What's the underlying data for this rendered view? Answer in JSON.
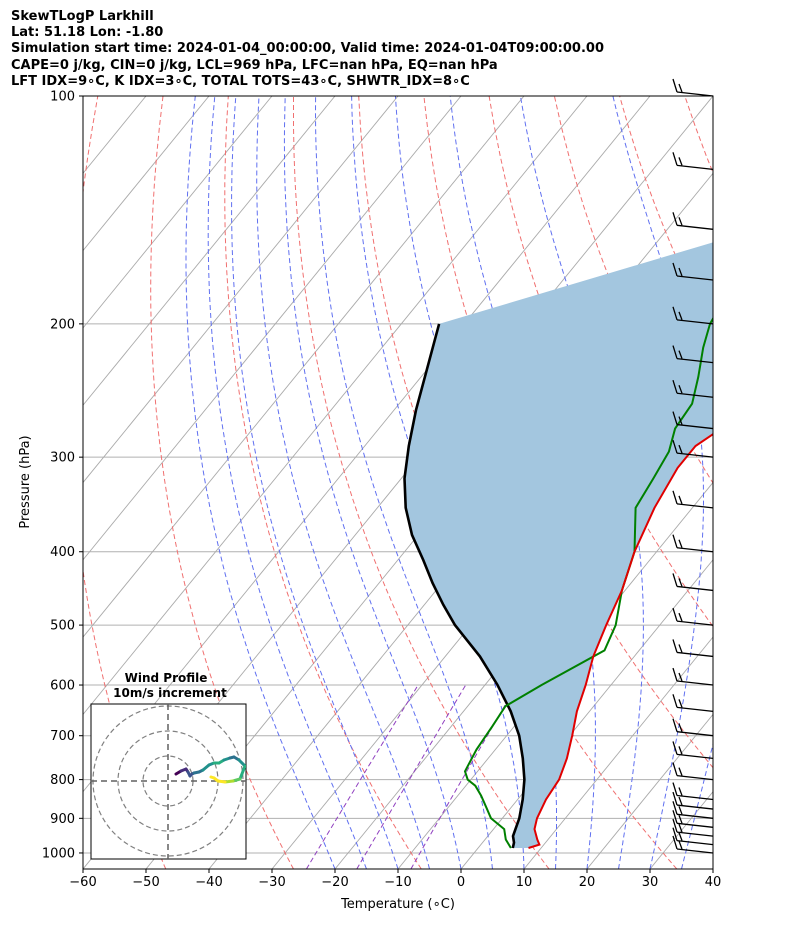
{
  "header": {
    "line1": "SkewTLogP Larkhill",
    "line2": "Lat: 51.18   Lon: -1.80",
    "line3": "Simulation start time: 2024-01-04_00:00:00, Valid time: 2024-01-04T09:00:00.00",
    "line4": "CAPE=0 j/kg, CIN=0 j/kg, LCL=969 hPa, LFC=nan hPa, EQ=nan hPa",
    "line5": "LFT IDX=9∘C, K IDX=3∘C, TOTAL TOTS=43∘C, SHWTR_IDX=8∘C"
  },
  "chart_data": {
    "type": "skew-t log-p",
    "xlabel": "Temperature (∘C)",
    "ylabel": "Pressure (hPa)",
    "xlim": [
      -60,
      40
    ],
    "ylim": [
      1050,
      100
    ],
    "x_ticks": [
      "−60",
      "−50",
      "−40",
      "−30",
      "−20",
      "−10",
      "0",
      "10",
      "20",
      "30",
      "40"
    ],
    "y_ticks": [
      100,
      200,
      300,
      400,
      500,
      600,
      700,
      800,
      900,
      1000
    ],
    "y_scale": "log",
    "grid": true,
    "colors": {
      "temperature": "#e00000",
      "dewpoint": "#008000",
      "parcel": "#000000",
      "cape_fill": "#a3c6df",
      "dry_adiabat": "#f07070",
      "moist_adiabat": "#6070f0",
      "mixing_ratio": "#9040c0",
      "isotherm": "#aaaaaa"
    },
    "series": [
      {
        "key": "temperature",
        "x": [
          8,
          9.3,
          8.3,
          6.5,
          5.5,
          4.5,
          4.0,
          2.5,
          0.4,
          -2.0,
          -4.0,
          -6.5,
          -8.5,
          -10.5,
          -13.5,
          -16.0,
          -17.5,
          -17.5,
          -15.0,
          -11.5,
          -7.0,
          -3.5,
          0,
          2.0,
          4.5,
          7.0,
          10.5,
          13.0,
          15.5,
          17.5,
          18.0
        ],
        "p": [
          985,
          975,
          960,
          930,
          900,
          850,
          800,
          750,
          700,
          650,
          600,
          550,
          500,
          450,
          400,
          350,
          310,
          290,
          270,
          250,
          230,
          210,
          200,
          180,
          160,
          145,
          130,
          120,
          110,
          103,
          100
        ]
      },
      {
        "key": "dewpoint",
        "x": [
          5.2,
          3.3,
          1.7,
          -1.8,
          -4.0,
          -6.3,
          -8.5,
          -10.5,
          -12.0,
          -13.0,
          -13.5,
          -14.0,
          -11.0,
          -5.5,
          -7.0,
          -10.5,
          -13.5,
          -19.0,
          -20.0,
          -21.0,
          -23.0,
          -23.5,
          -26.0,
          -29.0,
          -31.0,
          -32.0,
          -30.5,
          -28.5,
          -26.0,
          -23.0,
          -19.0,
          -14.5,
          -11.0,
          -9.0
        ],
        "p": [
          985,
          960,
          930,
          900,
          870,
          840,
          815,
          800,
          780,
          730,
          680,
          640,
          600,
          540,
          500,
          450,
          400,
          350,
          320,
          295,
          275,
          255,
          235,
          215,
          200,
          185,
          175,
          160,
          145,
          130,
          120,
          110,
          103,
          100
        ]
      },
      {
        "key": "parcel",
        "x": [
          5.5,
          5.0,
          4.0,
          2.7,
          0.8,
          -1.5,
          -4.5,
          -8.0,
          -12.5,
          -18.0,
          -24.5,
          -32.5,
          -37.0,
          -41.5,
          -46.0,
          -51.0,
          -55.5,
          -59.5,
          -63.0,
          -66.5,
          -70.0,
          -74.0
        ],
        "p": [
          985,
          969,
          950,
          900,
          850,
          800,
          750,
          700,
          650,
          600,
          550,
          500,
          470,
          440,
          410,
          380,
          350,
          320,
          290,
          260,
          230,
          200
        ]
      }
    ],
    "wind_barb_pressures": [
      1000,
      975,
      950,
      925,
      900,
      875,
      850,
      800,
      750,
      700,
      650,
      600,
      550,
      500,
      450,
      400,
      350,
      300,
      275,
      250,
      225,
      200,
      175,
      150,
      125,
      100
    ],
    "hodograph": {
      "title_line1": "Wind Profile",
      "title_line2": "10m/s increment",
      "ring_increment_ms": 10
    }
  }
}
